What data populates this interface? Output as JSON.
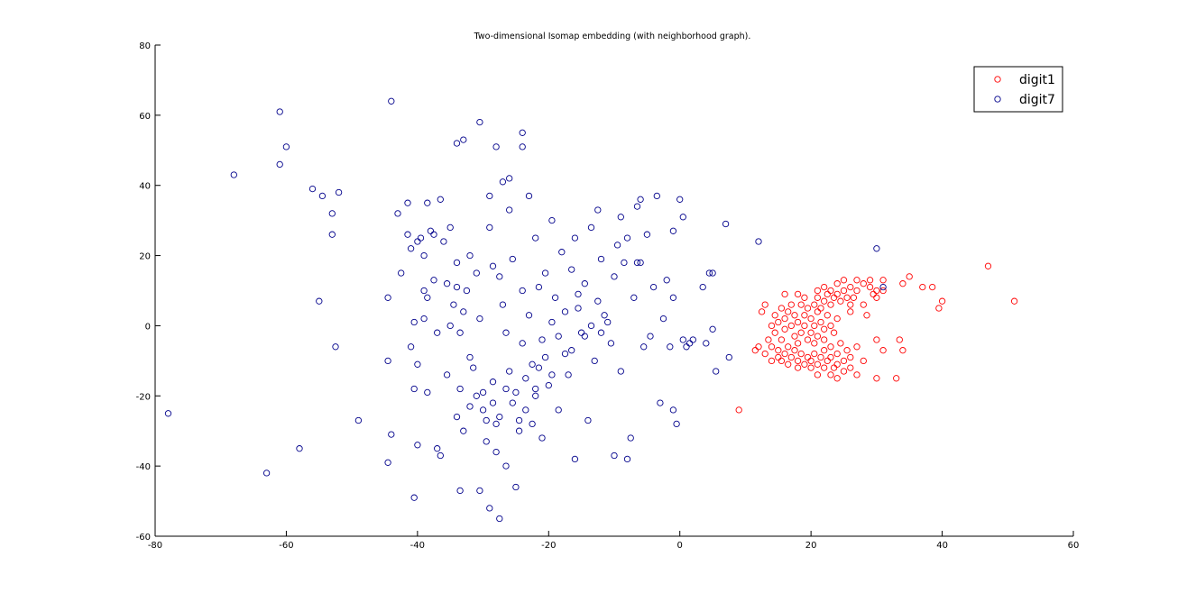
{
  "chart_data": {
    "type": "scatter",
    "title": "Two-dimensional Isomap embedding (with neighborhood graph).",
    "xlim": [
      -80,
      60
    ],
    "ylim": [
      -60,
      80
    ],
    "xticks": [
      -80,
      -60,
      -40,
      -20,
      0,
      20,
      40,
      60
    ],
    "yticks": [
      -60,
      -40,
      -20,
      0,
      20,
      40,
      60,
      80
    ],
    "xtick_labels": [
      "-80",
      "-60",
      "-40",
      "-20",
      "0",
      "20",
      "40",
      "60"
    ],
    "ytick_labels": [
      "-60",
      "-40",
      "-20",
      "0",
      "20",
      "40",
      "60",
      "80"
    ],
    "grid": false,
    "legend": {
      "position": "top-right"
    },
    "series": [
      {
        "name": "digit1",
        "color": "#ff0000",
        "marker": "circle-open",
        "points": [
          [
            51,
            7
          ],
          [
            47,
            17
          ],
          [
            40,
            7
          ],
          [
            39.5,
            5
          ],
          [
            38.5,
            11
          ],
          [
            37,
            11
          ],
          [
            35,
            14
          ],
          [
            34,
            12
          ],
          [
            33.5,
            -4
          ],
          [
            34,
            -7
          ],
          [
            33,
            -15
          ],
          [
            31,
            13
          ],
          [
            31,
            10
          ],
          [
            30,
            10
          ],
          [
            30,
            8
          ],
          [
            29,
            11
          ],
          [
            28,
            6
          ],
          [
            28.5,
            3
          ],
          [
            30,
            -4
          ],
          [
            31,
            -7
          ],
          [
            30,
            -15
          ],
          [
            29.5,
            9
          ],
          [
            29,
            13
          ],
          [
            28,
            12
          ],
          [
            27,
            13
          ],
          [
            27,
            10
          ],
          [
            26.5,
            8
          ],
          [
            26,
            11
          ],
          [
            26,
            6
          ],
          [
            26,
            4
          ],
          [
            25.5,
            8
          ],
          [
            25,
            10
          ],
          [
            25,
            13
          ],
          [
            24.5,
            7
          ],
          [
            24,
            9
          ],
          [
            24,
            12
          ],
          [
            23.5,
            8
          ],
          [
            23,
            10
          ],
          [
            23,
            6
          ],
          [
            22.5,
            9
          ],
          [
            22,
            11
          ],
          [
            22,
            7
          ],
          [
            21.5,
            5
          ],
          [
            21,
            8
          ],
          [
            21,
            10
          ],
          [
            20.5,
            6
          ],
          [
            27,
            -6
          ],
          [
            28,
            -10
          ],
          [
            27,
            -14
          ],
          [
            26,
            -12
          ],
          [
            26,
            -9
          ],
          [
            25.5,
            -7
          ],
          [
            25,
            -10
          ],
          [
            25,
            -13
          ],
          [
            24.5,
            -5
          ],
          [
            24,
            -8
          ],
          [
            24,
            -11
          ],
          [
            24,
            -15
          ],
          [
            23.5,
            -12
          ],
          [
            23,
            -9
          ],
          [
            23,
            -6
          ],
          [
            23,
            -14
          ],
          [
            22.5,
            -10
          ],
          [
            22,
            -7
          ],
          [
            22,
            -12
          ],
          [
            21.5,
            -9
          ],
          [
            21,
            -11
          ],
          [
            21,
            -14
          ],
          [
            20.5,
            -8
          ],
          [
            20,
            -10
          ],
          [
            20,
            -12
          ],
          [
            19.5,
            -9
          ],
          [
            19,
            -11
          ],
          [
            18.5,
            -8
          ],
          [
            18,
            -10
          ],
          [
            18,
            -12
          ],
          [
            17.5,
            -7
          ],
          [
            17,
            -9
          ],
          [
            16.5,
            -11
          ],
          [
            16,
            -8
          ],
          [
            15.5,
            -10
          ],
          [
            24,
            2
          ],
          [
            23.5,
            -2
          ],
          [
            23,
            0
          ],
          [
            22.5,
            3
          ],
          [
            22,
            -1
          ],
          [
            22,
            -4
          ],
          [
            21.5,
            1
          ],
          [
            21,
            -3
          ],
          [
            21,
            4
          ],
          [
            20.5,
            0
          ],
          [
            20.5,
            -5
          ],
          [
            20,
            2
          ],
          [
            20,
            -2
          ],
          [
            19.5,
            5
          ],
          [
            19.5,
            -4
          ],
          [
            19,
            0
          ],
          [
            19,
            3
          ],
          [
            18.5,
            -2
          ],
          [
            18.5,
            6
          ],
          [
            18,
            1
          ],
          [
            18,
            -5
          ],
          [
            17.5,
            3
          ],
          [
            17.5,
            -3
          ],
          [
            17,
            6
          ],
          [
            17,
            0
          ],
          [
            16.5,
            4
          ],
          [
            16.5,
            -6
          ],
          [
            16,
            2
          ],
          [
            16,
            -1
          ],
          [
            15.5,
            5
          ],
          [
            15.5,
            -4
          ],
          [
            15,
            1
          ],
          [
            15,
            -7
          ],
          [
            14.5,
            3
          ],
          [
            14.5,
            -2
          ],
          [
            14,
            0
          ],
          [
            14,
            -6
          ],
          [
            13.5,
            -4
          ],
          [
            13,
            -8
          ],
          [
            12.5,
            4
          ],
          [
            12,
            -6
          ],
          [
            11.5,
            -7
          ],
          [
            13,
            6
          ],
          [
            16,
            9
          ],
          [
            18,
            9
          ],
          [
            19,
            8
          ],
          [
            14,
            -10
          ],
          [
            15,
            -9
          ],
          [
            9,
            -24
          ]
        ]
      },
      {
        "name": "digit7",
        "color": "#00008b",
        "marker": "circle-open",
        "points": [
          [
            -78,
            -25
          ],
          [
            -68,
            43
          ],
          [
            -63,
            -42
          ],
          [
            -61,
            61
          ],
          [
            -61,
            46
          ],
          [
            -60,
            51
          ],
          [
            -58,
            -35
          ],
          [
            -56,
            39
          ],
          [
            -55,
            7
          ],
          [
            -54.5,
            37
          ],
          [
            -53,
            32
          ],
          [
            -53,
            26
          ],
          [
            -52.5,
            -6
          ],
          [
            -52,
            38
          ],
          [
            -49,
            -27
          ],
          [
            -44,
            64
          ],
          [
            -44.5,
            8
          ],
          [
            -44.5,
            -10
          ],
          [
            -44.5,
            -39
          ],
          [
            -44,
            -31
          ],
          [
            -43,
            32
          ],
          [
            -42.5,
            15
          ],
          [
            -41.5,
            35
          ],
          [
            -41.5,
            26
          ],
          [
            -41,
            22
          ],
          [
            -41,
            -6
          ],
          [
            -40.5,
            1
          ],
          [
            -40.5,
            -18
          ],
          [
            -40.5,
            -49
          ],
          [
            -40,
            -34
          ],
          [
            -40,
            -11
          ],
          [
            -40,
            24
          ],
          [
            -39.5,
            25
          ],
          [
            -39,
            20
          ],
          [
            -39,
            10
          ],
          [
            -39,
            2
          ],
          [
            -38.5,
            -19
          ],
          [
            -38.5,
            8
          ],
          [
            -38.5,
            35
          ],
          [
            -38,
            27
          ],
          [
            -37.5,
            13
          ],
          [
            -37.5,
            26
          ],
          [
            -37,
            -35
          ],
          [
            -37,
            -2
          ],
          [
            -36.5,
            36
          ],
          [
            -36.5,
            -37
          ],
          [
            -36,
            24
          ],
          [
            -35.5,
            -14
          ],
          [
            -35.5,
            12
          ],
          [
            -35,
            0
          ],
          [
            -34.5,
            6
          ],
          [
            -34,
            11
          ],
          [
            -34,
            52
          ],
          [
            -34,
            18
          ],
          [
            -33.5,
            -18
          ],
          [
            -33.5,
            -2
          ],
          [
            -33,
            4
          ],
          [
            -32.5,
            10
          ],
          [
            -32,
            20
          ],
          [
            -32,
            -9
          ],
          [
            -31.5,
            -12
          ],
          [
            -31,
            15
          ],
          [
            -30.5,
            58
          ],
          [
            -30.5,
            2
          ],
          [
            -30,
            -24
          ],
          [
            -29.5,
            -33
          ],
          [
            -29,
            28
          ],
          [
            -28.5,
            17
          ],
          [
            -28.5,
            -16
          ],
          [
            -28,
            -28
          ],
          [
            -28,
            -36
          ],
          [
            -27.5,
            14
          ],
          [
            -27,
            6
          ],
          [
            -26.5,
            -2
          ],
          [
            -26,
            42
          ],
          [
            -26,
            -13
          ],
          [
            -25.5,
            19
          ],
          [
            -25,
            -46
          ],
          [
            -24.5,
            -30
          ],
          [
            -24,
            -5
          ],
          [
            -24,
            10
          ],
          [
            -23.5,
            -24
          ],
          [
            -23,
            3
          ],
          [
            -23,
            37
          ],
          [
            -22.5,
            -11
          ],
          [
            -22,
            25
          ],
          [
            -22,
            -20
          ],
          [
            -21.5,
            11
          ],
          [
            -21,
            -4
          ],
          [
            -21,
            -32
          ],
          [
            -20.5,
            15
          ],
          [
            -20,
            -17
          ],
          [
            -19.5,
            30
          ],
          [
            -19.5,
            1
          ],
          [
            -19,
            8
          ],
          [
            -18.5,
            -24
          ],
          [
            -18,
            21
          ],
          [
            -17.5,
            -8
          ],
          [
            -17,
            -14
          ],
          [
            -16.5,
            16
          ],
          [
            -16,
            25
          ],
          [
            -16,
            -38
          ],
          [
            -15.5,
            5
          ],
          [
            -15,
            -2
          ],
          [
            -14.5,
            12
          ],
          [
            -14,
            -27
          ],
          [
            -13.5,
            28
          ],
          [
            -13,
            -10
          ],
          [
            -12.5,
            33
          ],
          [
            -12,
            19
          ],
          [
            -33,
            53
          ],
          [
            -28,
            51
          ],
          [
            -24,
            51
          ],
          [
            -24,
            55
          ],
          [
            -27,
            41
          ],
          [
            -29,
            37
          ],
          [
            -26,
            33
          ],
          [
            -26.5,
            -40
          ],
          [
            -27.5,
            -55
          ],
          [
            -33.5,
            -47
          ],
          [
            -30.5,
            -47
          ],
          [
            -29,
            -52
          ],
          [
            -35,
            28
          ],
          [
            -34,
            -26
          ],
          [
            -33,
            -30
          ],
          [
            -32,
            -23
          ],
          [
            -31,
            -20
          ],
          [
            -30,
            -19
          ],
          [
            -29.5,
            -27
          ],
          [
            -28.5,
            -22
          ],
          [
            -27.5,
            -26
          ],
          [
            -26.5,
            -18
          ],
          [
            -25.5,
            -22
          ],
          [
            -25,
            -19
          ],
          [
            -24.5,
            -27
          ],
          [
            -23.5,
            -15
          ],
          [
            -22.5,
            -28
          ],
          [
            -22,
            -18
          ],
          [
            -21.5,
            -12
          ],
          [
            -20.5,
            -9
          ],
          [
            -19.5,
            -14
          ],
          [
            -18.5,
            -3
          ],
          [
            -17.5,
            4
          ],
          [
            -16.5,
            -7
          ],
          [
            -15.5,
            9
          ],
          [
            -14.5,
            -3
          ],
          [
            -13.5,
            0
          ],
          [
            -12.5,
            7
          ],
          [
            -11.5,
            3
          ],
          [
            -10.5,
            -5
          ],
          [
            -10,
            14
          ],
          [
            -9.5,
            23
          ],
          [
            -9,
            -13
          ],
          [
            -8.5,
            18
          ],
          [
            -12,
            -2
          ],
          [
            -11,
            1
          ],
          [
            -10,
            -37
          ],
          [
            -9,
            31
          ],
          [
            -8,
            25
          ],
          [
            -8,
            -38
          ],
          [
            -7.5,
            -32
          ],
          [
            -7,
            8
          ],
          [
            -6.5,
            18
          ],
          [
            -6.5,
            34
          ],
          [
            -6,
            36
          ],
          [
            -6,
            18
          ],
          [
            -5.5,
            -6
          ],
          [
            -5,
            26
          ],
          [
            -4.5,
            -3
          ],
          [
            -4,
            11
          ],
          [
            -3.5,
            37
          ],
          [
            -3,
            -22
          ],
          [
            -2.5,
            2
          ],
          [
            -2,
            13
          ],
          [
            -1.5,
            -6
          ],
          [
            -1,
            8
          ],
          [
            -1,
            -24
          ],
          [
            -1,
            27
          ],
          [
            -0.5,
            -28
          ],
          [
            0,
            36
          ],
          [
            0.5,
            31
          ],
          [
            0.5,
            -4
          ],
          [
            1,
            -6
          ],
          [
            1.5,
            -5
          ],
          [
            2,
            -4
          ],
          [
            3.5,
            11
          ],
          [
            4,
            -5
          ],
          [
            4.5,
            15
          ],
          [
            5,
            15
          ],
          [
            5,
            -1
          ],
          [
            5.5,
            -13
          ],
          [
            7,
            29
          ],
          [
            7.5,
            -9
          ],
          [
            12,
            24
          ],
          [
            30,
            22
          ],
          [
            31,
            11
          ]
        ]
      }
    ]
  }
}
